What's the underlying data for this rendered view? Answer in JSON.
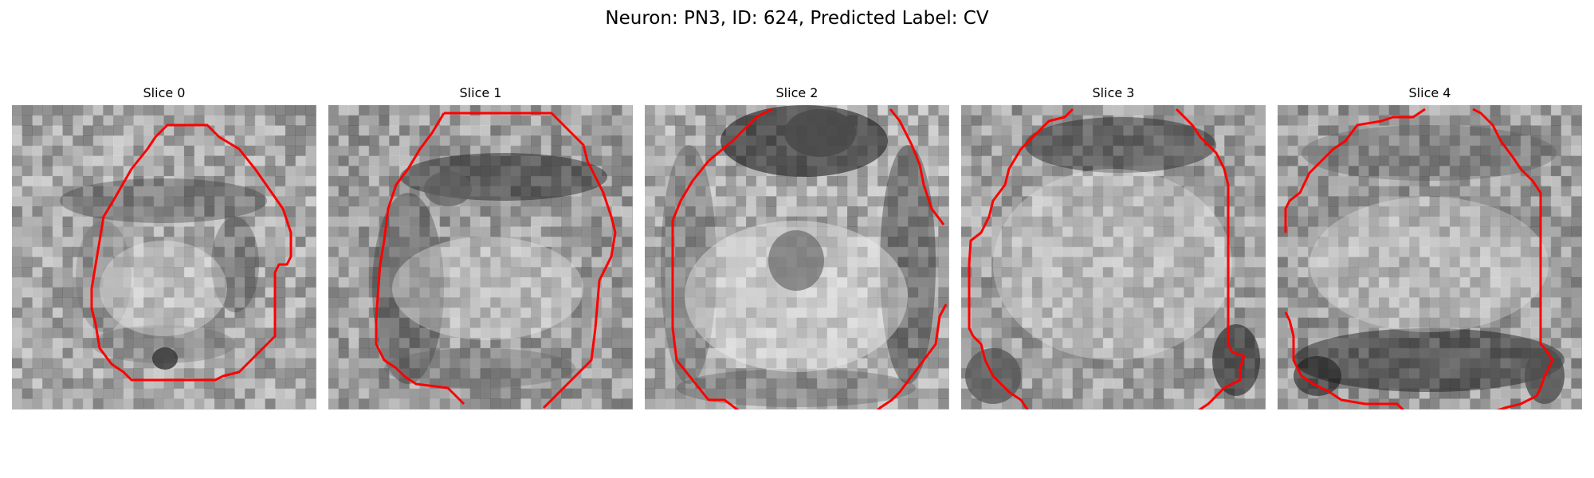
{
  "figure": {
    "title": "Neuron: PN3, ID: 624, Predicted Label: CV",
    "slices": [
      {
        "label": "Slice 0",
        "bg": "#b4b4b4",
        "dark": "#333333",
        "accent": "#6a6a6a"
      },
      {
        "label": "Slice 1",
        "bg": "#a5a5a5",
        "dark": "#1c1c1c",
        "accent": "#5c5c5c"
      },
      {
        "label": "Slice 2",
        "bg": "#bdbdbd",
        "dark": "#111111",
        "accent": "#4a4a4a"
      },
      {
        "label": "Slice 3",
        "bg": "#a9a9a9",
        "dark": "#222222",
        "accent": "#555555"
      },
      {
        "label": "Slice 4",
        "bg": "#a3a3a3",
        "dark": "#151515",
        "accent": "#4f4f4f"
      }
    ],
    "contour_color": "#ff0000",
    "colormap": "grayscale"
  }
}
